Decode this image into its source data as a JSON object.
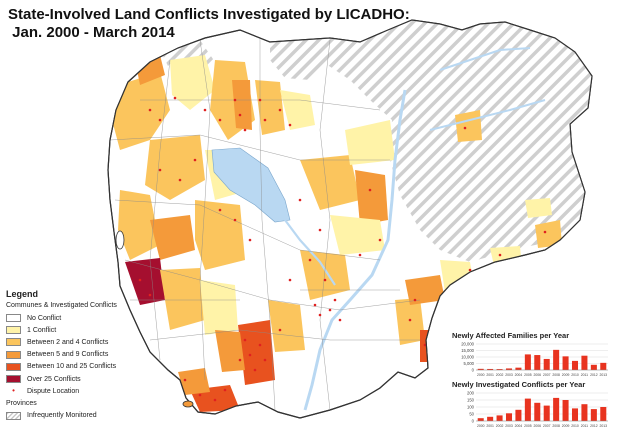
{
  "title": "State-Involved Land Conflicts Investigated by LICADHO:\n Jan. 2000 - March 2014",
  "colors": {
    "no_conflict": "#ffffff",
    "one": "#fff3a8",
    "two_four": "#fbc55d",
    "five_nine": "#f49a3a",
    "ten_25": "#e8521f",
    "over_25": "#a50f2f",
    "dispute": "#e02020",
    "water": "#b9d8f2",
    "border": "#444444"
  },
  "legend": {
    "title": "Legend",
    "communes_label": "Communes & Investigated Conflicts",
    "items": [
      {
        "label": "No Conflict",
        "color": "#ffffff"
      },
      {
        "label": "1 Conflict",
        "color": "#fff3a8"
      },
      {
        "label": "Between 2 and 4 Conflicts",
        "color": "#fbc55d"
      },
      {
        "label": "Between 5 and 9 Conflicts",
        "color": "#f49a3a"
      },
      {
        "label": "Between 10 and 25 Conflicts",
        "color": "#e8521f"
      },
      {
        "label": "Over 25 Conflicts",
        "color": "#a50f2f"
      }
    ],
    "dispute_label": "Dispute Location",
    "provinces_label": "Provinces",
    "monitored_label": "Infrequently Monitored"
  },
  "chart_data": [
    {
      "type": "bar",
      "title": "Newly Affected Families per Year",
      "categories": [
        "2000",
        "2001",
        "2002",
        "2003",
        "2004",
        "2005",
        "2006",
        "2007",
        "2008",
        "2009",
        "2010",
        "2011",
        "2012",
        "2013"
      ],
      "values": [
        900,
        800,
        700,
        1200,
        1800,
        12000,
        11500,
        8500,
        15500,
        10500,
        7000,
        11000,
        4000,
        5500
      ],
      "yticks": [
        "20,000",
        "15,000",
        "10,000",
        "5,000",
        "0"
      ],
      "ylim": [
        0,
        20000
      ],
      "color": "#e8331f"
    },
    {
      "type": "bar",
      "title": "Newly Investigated Conflicts per Year",
      "categories": [
        "2000",
        "2001",
        "2002",
        "2003",
        "2004",
        "2005",
        "2006",
        "2007",
        "2008",
        "2009",
        "2010",
        "2011",
        "2012",
        "2013"
      ],
      "values": [
        20,
        30,
        40,
        55,
        80,
        160,
        130,
        110,
        165,
        150,
        90,
        120,
        85,
        100
      ],
      "yticks": [
        "200",
        "150",
        "100",
        "50",
        "0"
      ],
      "ylim": [
        0,
        200
      ],
      "color": "#e8331f"
    }
  ]
}
